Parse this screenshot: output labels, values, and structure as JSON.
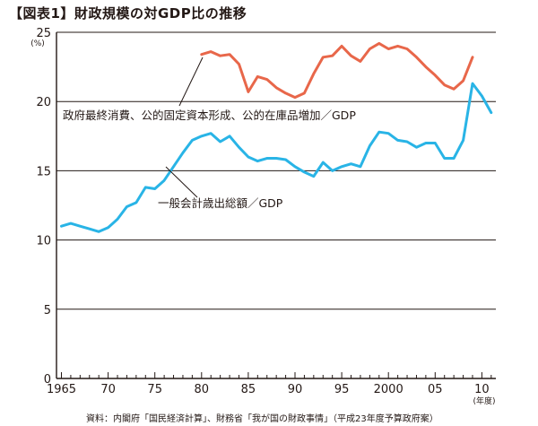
{
  "title": "【図表1】財政規模の対GDP比の推移",
  "source": "資料：内閣府「国民経済計算」、財務省「我が国の財政事情」（平成23年度予算政府案）",
  "colors": {
    "government_consumption": "#e8674a",
    "general_account": "#29b4e6",
    "grid": "#231815"
  },
  "chart_data": {
    "type": "line",
    "title": "",
    "ylabel": "(%)",
    "xlabel": "(年度)",
    "ylim": [
      0,
      25
    ],
    "xlim": [
      1965,
      2011
    ],
    "grid": true,
    "y_ticks": [
      {
        "value": 0,
        "label": "0"
      },
      {
        "value": 5,
        "label": "5"
      },
      {
        "value": 10,
        "label": "10"
      },
      {
        "value": 15,
        "label": "15"
      },
      {
        "value": 20,
        "label": "20"
      },
      {
        "value": 25,
        "label": "25"
      }
    ],
    "x_ticks": [
      {
        "value": 1965,
        "label": "1965"
      },
      {
        "value": 1970,
        "label": "70"
      },
      {
        "value": 1975,
        "label": "75"
      },
      {
        "value": 1980,
        "label": "80"
      },
      {
        "value": 1985,
        "label": "85"
      },
      {
        "value": 1990,
        "label": "90"
      },
      {
        "value": 1995,
        "label": "95"
      },
      {
        "value": 2000,
        "label": "2000"
      },
      {
        "value": 2005,
        "label": "05"
      },
      {
        "value": 2010,
        "label": "10"
      }
    ],
    "series": [
      {
        "name": "政府最終消費、公的固定資本形成、公的在庫品増加／GDP",
        "x": [
          1980,
          1981,
          1982,
          1983,
          1984,
          1985,
          1986,
          1987,
          1988,
          1989,
          1990,
          1991,
          1992,
          1993,
          1994,
          1995,
          1996,
          1997,
          1998,
          1999,
          2000,
          2001,
          2002,
          2003,
          2004,
          2005,
          2006,
          2007,
          2008,
          2009
        ],
        "values": [
          23.4,
          23.6,
          23.3,
          23.4,
          22.7,
          20.7,
          21.8,
          21.6,
          21.0,
          20.6,
          20.3,
          20.6,
          22.0,
          23.2,
          23.3,
          24.0,
          23.3,
          22.9,
          23.8,
          24.2,
          23.8,
          24.0,
          23.8,
          23.2,
          22.5,
          21.9,
          21.2,
          20.9,
          21.5,
          23.2
        ]
      },
      {
        "name": "一般会計歳出総額／GDP",
        "x": [
          1965,
          1966,
          1967,
          1968,
          1969,
          1970,
          1971,
          1972,
          1973,
          1974,
          1975,
          1976,
          1977,
          1978,
          1979,
          1980,
          1981,
          1982,
          1983,
          1984,
          1985,
          1986,
          1987,
          1988,
          1989,
          1990,
          1991,
          1992,
          1993,
          1994,
          1995,
          1996,
          1997,
          1998,
          1999,
          2000,
          2001,
          2002,
          2003,
          2004,
          2005,
          2006,
          2007,
          2008,
          2009,
          2010,
          2011
        ],
        "values": [
          11.0,
          11.2,
          11.0,
          10.8,
          10.6,
          10.9,
          11.5,
          12.4,
          12.7,
          13.8,
          13.7,
          14.3,
          15.3,
          16.3,
          17.2,
          17.5,
          17.7,
          17.1,
          17.5,
          16.7,
          16.0,
          15.7,
          15.9,
          15.9,
          15.8,
          15.3,
          14.9,
          14.6,
          15.6,
          15.0,
          15.3,
          15.5,
          15.3,
          16.8,
          17.8,
          17.7,
          17.2,
          17.1,
          16.7,
          17.0,
          17.0,
          15.9,
          15.9,
          17.2,
          21.3,
          20.4,
          19.2
        ]
      }
    ],
    "annotations": [
      {
        "text": "政府最終消費、公的固定資本形成、公的在庫品増加／GDP",
        "series_index": 0
      },
      {
        "text": "一般会計歳出総額／GDP",
        "series_index": 1
      }
    ]
  }
}
